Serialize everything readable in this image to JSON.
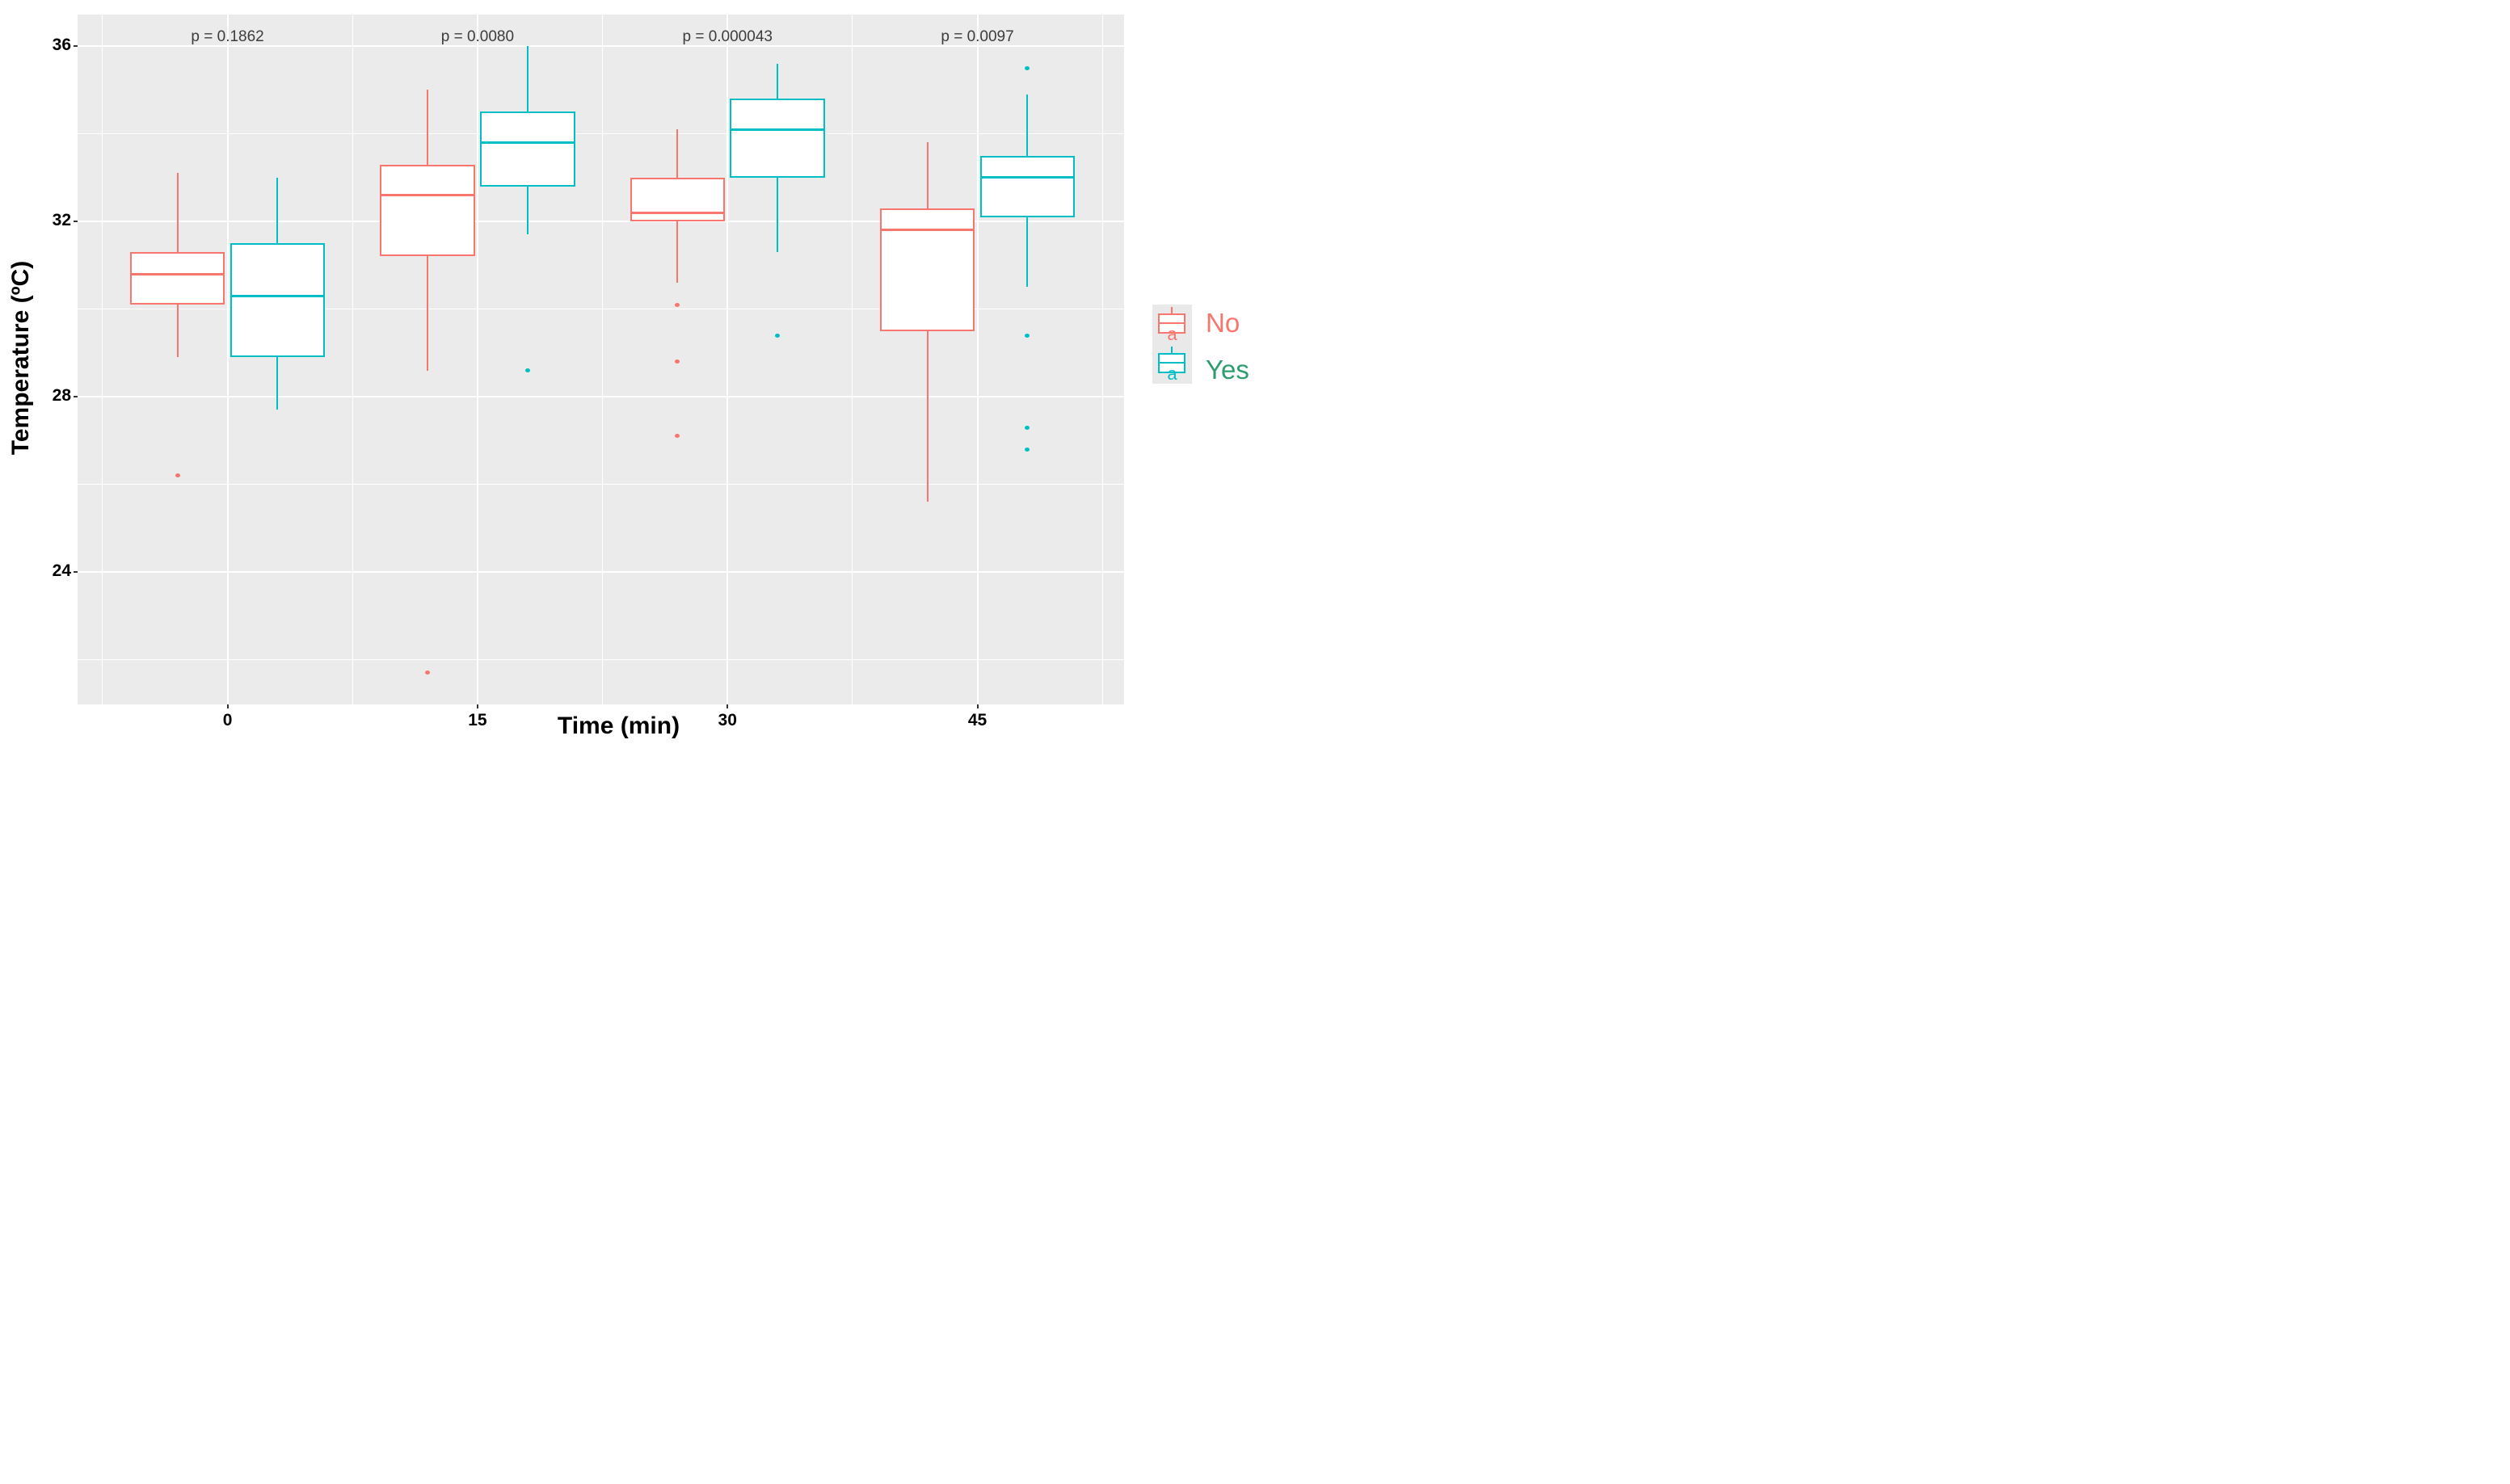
{
  "chart_data": {
    "type": "boxplot",
    "title": "",
    "xlabel": "Time (min)",
    "ylabel": "Temperature (ºC)",
    "x_tick_labels": [
      "0",
      "15",
      "30",
      "45"
    ],
    "x_tick_values": [
      0,
      15,
      30,
      45
    ],
    "x_minor_values": [
      -7.5,
      7.5,
      22.5,
      37.5,
      52.5
    ],
    "y_tick_labels": [
      "36",
      "32",
      "28",
      "24"
    ],
    "y_tick_values": [
      36,
      32,
      28,
      24
    ],
    "y_minor_values": [
      34,
      30,
      26,
      22
    ],
    "xlim": [
      -9,
      53.8
    ],
    "ylim": [
      20.98,
      36.72
    ],
    "grid": true,
    "panel_bg": "#ebebeb",
    "grid_color": "#ffffff",
    "legend_position": "right",
    "groups": [
      {
        "name": "No",
        "color": "#f8766d"
      },
      {
        "name": "Yes",
        "color": "#00bfc4"
      }
    ],
    "dodge_offset_min": 3.0,
    "box_width_min": 5.7,
    "p_label_y": 36.2,
    "p_values": [
      {
        "time": 0,
        "label": "p = 0.1862"
      },
      {
        "time": 15,
        "label": "p = 0.0080"
      },
      {
        "time": 30,
        "label": "p = 0.000043"
      },
      {
        "time": 45,
        "label": "p = 0.0097"
      }
    ],
    "boxes": [
      {
        "group": "No",
        "time": 0,
        "whisker_low": 28.9,
        "q1": 30.1,
        "median": 30.8,
        "q3": 31.3,
        "whisker_high": 33.1,
        "outliers": [
          26.2
        ]
      },
      {
        "group": "Yes",
        "time": 0,
        "whisker_low": 27.7,
        "q1": 28.9,
        "median": 30.3,
        "q3": 31.5,
        "whisker_high": 33.0,
        "outliers": []
      },
      {
        "group": "No",
        "time": 15,
        "whisker_low": 28.6,
        "q1": 31.2,
        "median": 32.6,
        "q3": 33.3,
        "whisker_high": 35.0,
        "outliers": [
          21.7
        ]
      },
      {
        "group": "Yes",
        "time": 15,
        "whisker_low": 31.7,
        "q1": 32.8,
        "median": 33.8,
        "q3": 34.5,
        "whisker_high": 36.0,
        "outliers": [
          28.6
        ]
      },
      {
        "group": "No",
        "time": 30,
        "whisker_low": 30.6,
        "q1": 32.0,
        "median": 32.2,
        "q3": 33.0,
        "whisker_high": 34.1,
        "outliers": [
          30.1,
          28.8,
          27.1
        ]
      },
      {
        "group": "Yes",
        "time": 30,
        "whisker_low": 31.3,
        "q1": 33.0,
        "median": 34.1,
        "q3": 34.8,
        "whisker_high": 35.6,
        "outliers": [
          29.4
        ]
      },
      {
        "group": "No",
        "time": 45,
        "whisker_low": 25.6,
        "q1": 29.5,
        "median": 31.8,
        "q3": 32.3,
        "whisker_high": 33.8,
        "outliers": []
      },
      {
        "group": "Yes",
        "time": 45,
        "whisker_low": 30.5,
        "q1": 32.1,
        "median": 33.0,
        "q3": 33.5,
        "whisker_high": 34.9,
        "outliers": [
          35.5,
          29.4,
          27.3,
          26.8
        ]
      }
    ]
  },
  "legend": {
    "key_glyph_letter": "a",
    "items": [
      {
        "label": "No",
        "box_color": "#f8766d",
        "label_color": "#f8766d"
      },
      {
        "label": "Yes",
        "box_color": "#00bfc4",
        "label_color": "#2d9e6e"
      }
    ]
  }
}
